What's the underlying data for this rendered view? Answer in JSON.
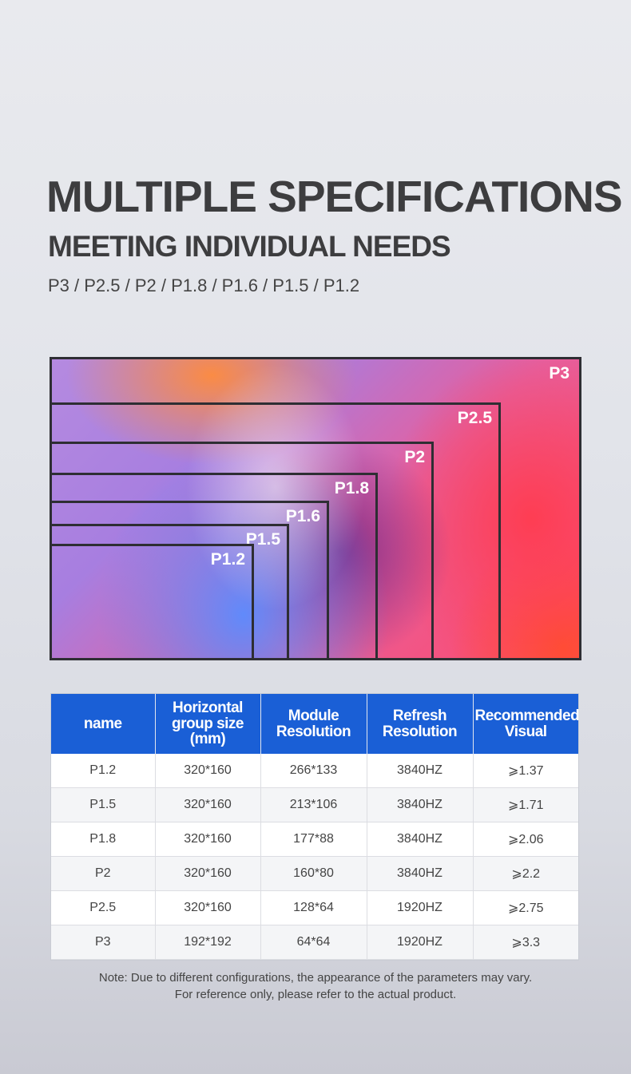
{
  "heading": {
    "title": "MULTIPLE SPECIFICATIONS",
    "subtitle": "MEETING INDIVIDUAL NEEDS",
    "specs": "P3 / P2.5 / P2 / P1.8 / P1.6 / P1.5 / P1.2"
  },
  "screen": {
    "outer_label": "P3",
    "boxes": [
      "P2.5",
      "P2",
      "P1.8",
      "P1.6",
      "P1.5",
      "P1.2"
    ]
  },
  "table": {
    "headers": [
      "name",
      "Horizontal group size (mm)",
      "Module Resolution",
      "Refresh Resolution",
      "Recommended Visual"
    ],
    "rows": [
      [
        "P1.2",
        "320*160",
        "266*133",
        "3840HZ",
        "⩾1.37"
      ],
      [
        "P1.5",
        "320*160",
        "213*106",
        "3840HZ",
        "⩾1.71"
      ],
      [
        "P1.8",
        "320*160",
        "177*88",
        "3840HZ",
        "⩾2.06"
      ],
      [
        "P2",
        "320*160",
        "160*80",
        "3840HZ",
        "⩾2.2"
      ],
      [
        "P2.5",
        "320*160",
        "128*64",
        "1920HZ",
        "⩾2.75"
      ],
      [
        "P3",
        "192*192",
        "64*64",
        "1920HZ",
        "⩾3.3"
      ]
    ]
  },
  "note": {
    "line1": "Note: Due to different configurations, the appearance of the parameters may vary.",
    "line2": "For reference only, please refer to the actual product."
  },
  "colors": {
    "header_blue": "#1a5fd6",
    "title_gray": "#3d3d3f"
  }
}
